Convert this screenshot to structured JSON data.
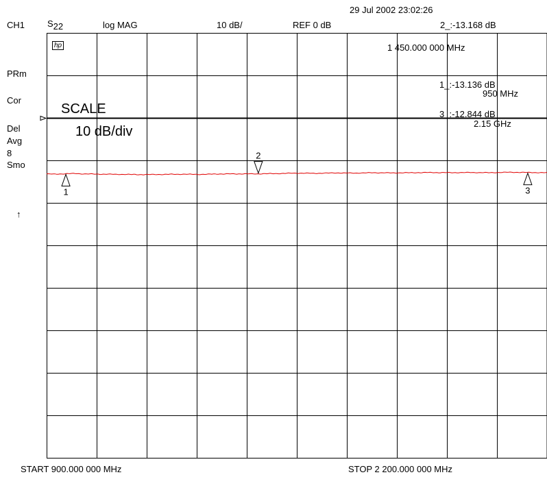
{
  "header": {
    "datetime": "29 Jul 2002  23:02:26",
    "channel": "CH1",
    "param_main": "S",
    "param_sub": "22",
    "format": "log MAG",
    "scale": "10 dB/",
    "ref": "REF 0 dB",
    "active_marker_readout": "2_:-13.168 dB",
    "active_marker_freq": "1 450.000 000 MHz"
  },
  "left_annotations": {
    "hp_logo": "hp",
    "prm": "PRm",
    "cor": "Cor",
    "del": "Del",
    "avg": "Avg",
    "avg_count": "8",
    "smo": "Smo",
    "arrow": "↑"
  },
  "overlay": {
    "scale_title": "SCALE",
    "scale_value": "10 dB/div"
  },
  "marker_list": [
    {
      "readout": "1_:-13.136 dB",
      "freq": "950 MHz"
    },
    {
      "readout": "3_:-12.844 dB",
      "freq": "2.15 GHz"
    }
  ],
  "footer": {
    "start": "START  900.000 000 MHz",
    "stop": "STOP 2 200.000 000 MHz"
  },
  "colors": {
    "trace": "#e00000",
    "grid": "#000000",
    "reference_line": "#000000"
  },
  "chart_data": {
    "type": "line",
    "x_unit": "MHz",
    "y_unit": "dB",
    "xlim": [
      900,
      2200
    ],
    "ylim": [
      -80,
      20
    ],
    "reference_level": 0,
    "grid": true,
    "series": [
      {
        "x": [
          900,
          925,
          950,
          975,
          1000,
          1050,
          1100,
          1150,
          1200,
          1250,
          1300,
          1350,
          1400,
          1450,
          1500,
          1550,
          1600,
          1650,
          1700,
          1750,
          1800,
          1850,
          1900,
          1950,
          2000,
          2050,
          2100,
          2150,
          2200
        ],
        "y": [
          -13.2,
          -13.25,
          -13.136,
          -13.1,
          -13.2,
          -13.25,
          -13.3,
          -13.35,
          -13.3,
          -13.25,
          -13.3,
          -13.2,
          -13.18,
          -13.168,
          -13.1,
          -13.0,
          -13.05,
          -12.95,
          -13.0,
          -12.9,
          -12.95,
          -12.9,
          -12.85,
          -12.9,
          -12.85,
          -12.9,
          -12.8,
          -12.844,
          -12.9
        ]
      }
    ],
    "markers": [
      {
        "label": "1",
        "x": 950,
        "y": -13.136,
        "direction": "up"
      },
      {
        "label": "2",
        "x": 1450,
        "y": -13.168,
        "direction": "down"
      },
      {
        "label": "3",
        "x": 2150,
        "y": -12.844,
        "direction": "up"
      }
    ]
  }
}
